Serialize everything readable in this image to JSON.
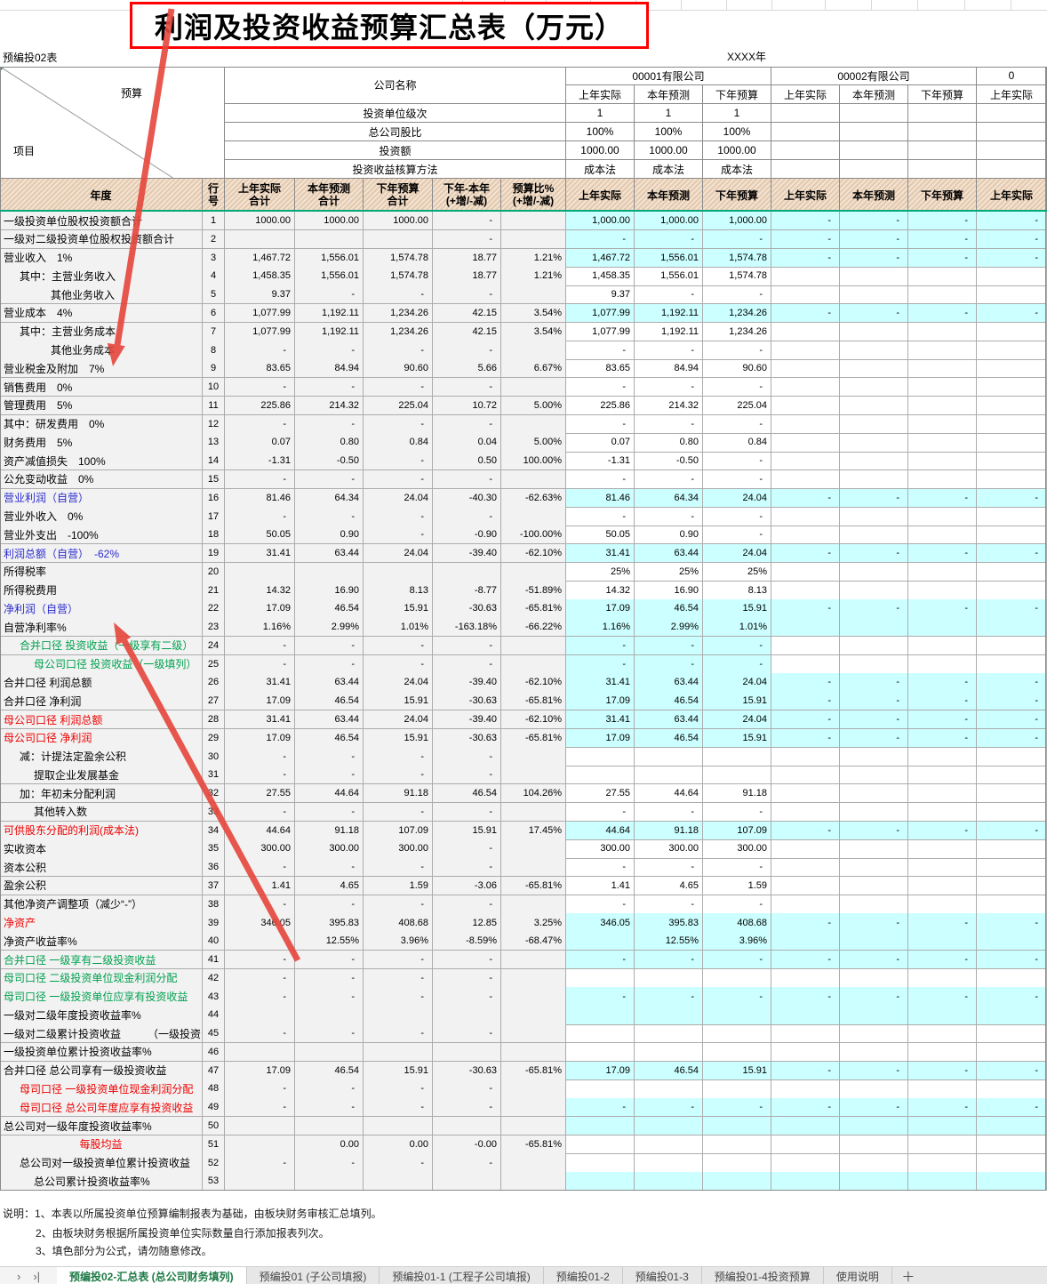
{
  "header": {
    "sheet_code": "预编投02表",
    "year_label": "XXXX年",
    "title": "利润及投资收益预算汇总表（万元）",
    "corner_top": "预算",
    "corner_bottom": "项目",
    "company_name_label": "公司名称",
    "info_labels": [
      "投资单位级次",
      "总公司股比",
      "投资额",
      "投资收益核算方法"
    ],
    "periods": [
      "上年实际",
      "本年预测",
      "下年预算"
    ],
    "company1": {
      "name": "00001有限公司",
      "info": [
        [
          "1",
          "1",
          "1"
        ],
        [
          "100%",
          "100%",
          "100%"
        ],
        [
          "1000.00",
          "1000.00",
          "1000.00"
        ],
        [
          "成本法",
          "成本法",
          "成本法"
        ]
      ]
    },
    "company2": {
      "name": "00002有限公司",
      "info": [
        [
          "",
          "",
          ""
        ],
        [
          "",
          "",
          ""
        ],
        [
          "",
          "",
          ""
        ],
        [
          "",
          "",
          ""
        ]
      ]
    },
    "company3": {
      "name": "0",
      "info": [
        [
          ""
        ],
        [
          ""
        ],
        [
          ""
        ],
        [
          ""
        ]
      ]
    },
    "col_year": "年度",
    "col_rowno": [
      "行",
      "号"
    ],
    "sum_cols": [
      [
        "上年实际",
        "合计"
      ],
      [
        "本年预测",
        "合计"
      ],
      [
        "下年预算",
        "合计"
      ],
      [
        "下年-本年",
        "(+增/-减)"
      ],
      [
        "预算比%",
        "(+增/-减)"
      ]
    ]
  },
  "rows": [
    {
      "n": "1",
      "l": "一级投资单位股权投资额合计",
      "s": [
        "1000.00",
        "1000.00",
        "1000.00",
        "-",
        ""
      ],
      "o1": [
        "1,000.00",
        "1,000.00",
        "1,000.00"
      ],
      "y1": 1,
      "o2": [
        "-",
        "-",
        "-"
      ],
      "y2": 1,
      "o3": "-"
    },
    {
      "n": "2",
      "l": "一级对二级投资单位股权投资额合计",
      "s": [
        "",
        "",
        "",
        "-",
        ""
      ],
      "o1": [
        "-",
        "-",
        "-"
      ],
      "y1": 1,
      "o2": [
        "-",
        "-",
        "-"
      ],
      "y2": 1,
      "o3": "-"
    },
    {
      "n": "3",
      "l": "营业收入　1%",
      "s": [
        "1,467.72",
        "1,556.01",
        "1,574.78",
        "18.77",
        "1.21%"
      ],
      "o1": [
        "1,467.72",
        "1,556.01",
        "1,574.78"
      ],
      "y1": 1,
      "o2": [
        "-",
        "-",
        "-"
      ],
      "y2": 1,
      "o3": "-"
    },
    {
      "n": "4",
      "l": "其中：主营业务收入",
      "i": 1,
      "s": [
        "1,458.35",
        "1,556.01",
        "1,574.78",
        "18.77",
        "1.21%"
      ],
      "o1": [
        "1,458.35",
        "1,556.01",
        "1,574.78"
      ]
    },
    {
      "n": "5",
      "l": "其他业务收入",
      "i": 3,
      "s": [
        "9.37",
        "-",
        "-",
        "-",
        ""
      ],
      "o1": [
        "9.37",
        "-",
        "-"
      ]
    },
    {
      "n": "6",
      "l": "营业成本　4%",
      "s": [
        "1,077.99",
        "1,192.11",
        "1,234.26",
        "42.15",
        "3.54%"
      ],
      "t": [
        0,
        1
      ],
      "o1": [
        "1,077.99",
        "1,192.11",
        "1,234.26"
      ],
      "y1": 1,
      "o2": [
        "-",
        "-",
        "-"
      ],
      "y2": 1,
      "o3": "-"
    },
    {
      "n": "7",
      "l": "其中：主营业务成本",
      "i": 1,
      "s": [
        "1,077.99",
        "1,192.11",
        "1,234.26",
        "42.15",
        "3.54%"
      ],
      "o1": [
        "1,077.99",
        "1,192.11",
        "1,234.26"
      ]
    },
    {
      "n": "8",
      "l": "其他业务成本",
      "i": 3,
      "s": [
        "-",
        "-",
        "-",
        "-",
        ""
      ],
      "o1": [
        "-",
        "-",
        "-"
      ]
    },
    {
      "n": "9",
      "l": "营业税金及附加　7%",
      "s": [
        "83.65",
        "84.94",
        "90.60",
        "5.66",
        "6.67%"
      ],
      "o1": [
        "83.65",
        "84.94",
        "90.60"
      ]
    },
    {
      "n": "10",
      "l": "销售费用　0%",
      "s": [
        "-",
        "-",
        "-",
        "-",
        ""
      ],
      "o1": [
        "-",
        "-",
        "-"
      ]
    },
    {
      "n": "11",
      "l": "管理费用　5%",
      "s": [
        "225.86",
        "214.32",
        "225.04",
        "10.72",
        "5.00%"
      ],
      "o1": [
        "225.86",
        "214.32",
        "225.04"
      ]
    },
    {
      "n": "12",
      "l": "其中：研发费用　0%",
      "s": [
        "-",
        "-",
        "-",
        "-",
        ""
      ],
      "o1": [
        "-",
        "-",
        "-"
      ]
    },
    {
      "n": "13",
      "l": "财务费用　5%",
      "s": [
        "0.07",
        "0.80",
        "0.84",
        "0.04",
        "5.00%"
      ],
      "o1": [
        "0.07",
        "0.80",
        "0.84"
      ]
    },
    {
      "n": "14",
      "l": "资产减值损失　100%",
      "s": [
        "-1.31",
        "-0.50",
        "-",
        "0.50",
        "100.00%"
      ],
      "o1": [
        "-1.31",
        "-0.50",
        "-"
      ]
    },
    {
      "n": "15",
      "l": "公允变动收益　0%",
      "rt": 1,
      "s": [
        "-",
        "-",
        "-",
        "-",
        ""
      ],
      "o1": [
        "-",
        "-",
        "-"
      ]
    },
    {
      "n": "16",
      "l": "营业利润（自营）",
      "c": "b",
      "s": [
        "81.46",
        "64.34",
        "24.04",
        "-40.30",
        "-62.63%"
      ],
      "t": [
        0,
        1,
        2,
        3,
        4
      ],
      "o1": [
        "81.46",
        "64.34",
        "24.04"
      ],
      "y1": 1,
      "t1": [
        0,
        1,
        2
      ],
      "o2": [
        "-",
        "-",
        "-"
      ],
      "y2": 1,
      "o3": "-"
    },
    {
      "n": "17",
      "l": "营业外收入　0%",
      "s": [
        "-",
        "-",
        "-",
        "-",
        ""
      ],
      "o1": [
        "-",
        "-",
        "-"
      ]
    },
    {
      "n": "18",
      "l": "营业外支出　-100%",
      "s": [
        "50.05",
        "0.90",
        "-",
        "-0.90",
        "-100.00%"
      ],
      "o1": [
        "50.05",
        "0.90",
        "-"
      ]
    },
    {
      "n": "19",
      "l": "利润总额（自营）　-62%",
      "c": "b",
      "s": [
        "31.41",
        "63.44",
        "24.04",
        "-39.40",
        "-62.10%"
      ],
      "o1": [
        "31.41",
        "63.44",
        "24.04"
      ],
      "y1": 1,
      "o2": [
        "-",
        "-",
        "-"
      ],
      "y2": 1,
      "o3": "-"
    },
    {
      "n": "20",
      "l": "所得税率",
      "s": [
        "",
        "",
        "",
        "",
        ""
      ],
      "o1": [
        "25%",
        "25%",
        "25%"
      ]
    },
    {
      "n": "21",
      "l": "所得税费用",
      "s": [
        "14.32",
        "16.90",
        "8.13",
        "-8.77",
        "-51.89%"
      ],
      "o1": [
        "14.32",
        "16.90",
        "8.13"
      ]
    },
    {
      "n": "22",
      "l": "净利润（自营）",
      "c": "b",
      "s": [
        "17.09",
        "46.54",
        "15.91",
        "-30.63",
        "-65.81%"
      ],
      "o1": [
        "17.09",
        "46.54",
        "15.91"
      ],
      "y1": 1,
      "o2": [
        "-",
        "-",
        "-"
      ],
      "y2": 1,
      "o3": "-"
    },
    {
      "n": "23",
      "l": "自营净利率%",
      "s": [
        "1.16%",
        "2.99%",
        "1.01%",
        "-163.18%",
        "-66.22%"
      ],
      "t": [
        3,
        4
      ],
      "o1": [
        "1.16%",
        "2.99%",
        "1.01%"
      ],
      "y1": 1,
      "o2": [
        "",
        "",
        ""
      ],
      "y2": 1,
      "o3": ""
    },
    {
      "n": "24",
      "l": "合并口径 投资收益（一级享有二级）",
      "i": 1,
      "c": "g",
      "s": [
        "-",
        "-",
        "-",
        "-",
        ""
      ],
      "o1": [
        "-",
        "-",
        "-"
      ],
      "y1": 1
    },
    {
      "n": "25",
      "l": "母公司口径 投资收益（一级填列）",
      "i": 2,
      "c": "g",
      "s": [
        "-",
        "-",
        "-",
        "-",
        ""
      ],
      "o1": [
        "-",
        "-",
        "-"
      ],
      "y1": 1
    },
    {
      "n": "26",
      "l": "合并口径 利润总额",
      "s": [
        "31.41",
        "63.44",
        "24.04",
        "-39.40",
        "-62.10%"
      ],
      "t": [
        4
      ],
      "o1": [
        "31.41",
        "63.44",
        "24.04"
      ],
      "y1": 1,
      "o2": [
        "-",
        "-",
        "-"
      ],
      "y2": 1,
      "o3": "-"
    },
    {
      "n": "27",
      "l": "合并口径 净利润",
      "s": [
        "17.09",
        "46.54",
        "15.91",
        "-30.63",
        "-65.81%"
      ],
      "t": [
        4
      ],
      "o1": [
        "17.09",
        "46.54",
        "15.91"
      ],
      "y1": 1,
      "o2": [
        "-",
        "-",
        "-"
      ],
      "y2": 1,
      "o3": "-"
    },
    {
      "n": "28",
      "l": "母公司口径 利润总额",
      "c": "r",
      "s": [
        "31.41",
        "63.44",
        "24.04",
        "-39.40",
        "-62.10%"
      ],
      "t": [
        4
      ],
      "o1": [
        "31.41",
        "63.44",
        "24.04"
      ],
      "y1": 1,
      "o2": [
        "-",
        "-",
        "-"
      ],
      "y2": 1,
      "o3": "-"
    },
    {
      "n": "29",
      "l": "母公司口径 净利润",
      "c": "r",
      "s": [
        "17.09",
        "46.54",
        "15.91",
        "-30.63",
        "-65.81%"
      ],
      "t": [
        4
      ],
      "o1": [
        "17.09",
        "46.54",
        "15.91"
      ],
      "y1": 1,
      "o2": [
        "-",
        "-",
        "-"
      ],
      "y2": 1,
      "o3": "-"
    },
    {
      "n": "30",
      "l": "减：计提法定盈余公积",
      "i": 1,
      "s": [
        "-",
        "-",
        "-",
        "-",
        ""
      ]
    },
    {
      "n": "31",
      "l": "提取企业发展基金",
      "i": 2,
      "s": [
        "-",
        "-",
        "-",
        "-",
        ""
      ]
    },
    {
      "n": "32",
      "l": "加：年初未分配利润",
      "i": 1,
      "s": [
        "27.55",
        "44.64",
        "91.18",
        "46.54",
        "104.26%"
      ],
      "o1": [
        "27.55",
        "44.64",
        "91.18"
      ]
    },
    {
      "n": "33",
      "l": "其他转入数",
      "i": 2,
      "s": [
        "-",
        "-",
        "-",
        "-",
        ""
      ],
      "o1": [
        "-",
        "-",
        "-"
      ]
    },
    {
      "n": "34",
      "l": "可供股东分配的利润(成本法)",
      "c": "r",
      "s": [
        "44.64",
        "91.18",
        "107.09",
        "15.91",
        "17.45%"
      ],
      "t": [
        0,
        1
      ],
      "o1": [
        "44.64",
        "91.18",
        "107.09"
      ],
      "y1": 1,
      "t1": [
        0,
        1
      ],
      "o2": [
        "-",
        "-",
        "-"
      ],
      "y2": 1,
      "o3": "-"
    },
    {
      "n": "35",
      "l": "实收资本",
      "s": [
        "300.00",
        "300.00",
        "300.00",
        "-",
        ""
      ],
      "o1": [
        "300.00",
        "300.00",
        "300.00"
      ]
    },
    {
      "n": "36",
      "l": "资本公积",
      "s": [
        "-",
        "-",
        "-",
        "-",
        ""
      ],
      "o1": [
        "-",
        "-",
        "-"
      ]
    },
    {
      "n": "37",
      "l": "盈余公积",
      "s": [
        "1.41",
        "4.65",
        "1.59",
        "-3.06",
        "-65.81%"
      ],
      "o1": [
        "1.41",
        "4.65",
        "1.59"
      ]
    },
    {
      "n": "38",
      "l": "其他净资产调整项（减少“-”）",
      "s": [
        "-",
        "-",
        "-",
        "-",
        ""
      ],
      "o1": [
        "-",
        "-",
        "-"
      ]
    },
    {
      "n": "39",
      "l": "净资产",
      "c": "r",
      "s": [
        "346.05",
        "395.83",
        "408.68",
        "12.85",
        "3.25%"
      ],
      "o1": [
        "346.05",
        "395.83",
        "408.68"
      ],
      "y1": 1,
      "o2": [
        "-",
        "-",
        "-"
      ],
      "y2": 1,
      "o3": "-"
    },
    {
      "n": "40",
      "l": "净资产收益率%",
      "s": [
        "",
        "12.55%",
        "3.96%",
        "-8.59%",
        "-68.47%"
      ],
      "o1": [
        "",
        "12.55%",
        "3.96%"
      ],
      "y1": 1,
      "o2": [
        "",
        "",
        ""
      ],
      "y2": 1,
      "o3": ""
    },
    {
      "n": "41",
      "l": "合并口径 一级享有二级投资收益",
      "c": "g",
      "s": [
        "-",
        "-",
        "-",
        "-",
        ""
      ],
      "o1": [
        "-",
        "-",
        "-"
      ],
      "y1": 1,
      "o2": [
        "-",
        "-",
        "-"
      ],
      "y2": 1,
      "o3": "-"
    },
    {
      "n": "42",
      "l": "母司口径 二级投资单位现金利润分配",
      "c": "g",
      "rt": 1,
      "s": [
        "-",
        "-",
        "-",
        "-",
        ""
      ]
    },
    {
      "n": "43",
      "l": "母司口径 一级投资单位应享有投资收益",
      "c": "g",
      "rt": 1,
      "s": [
        "-",
        "-",
        "-",
        "-",
        ""
      ],
      "o1": [
        "-",
        "-",
        "-"
      ],
      "y1": 1,
      "o2": [
        "-",
        "-",
        "-"
      ],
      "y2": 1,
      "o3": "-"
    },
    {
      "n": "44",
      "l": "一级对二级年度投资收益率%",
      "s": [
        "",
        "",
        "",
        "",
        ""
      ],
      "t": [
        0,
        1,
        2
      ],
      "o1": [
        "",
        "",
        ""
      ],
      "y1": 1,
      "t1": [
        0,
        1,
        2
      ],
      "o2": [
        "",
        "",
        ""
      ],
      "y2": 1,
      "o3": ""
    },
    {
      "n": "45",
      "l": "一级对二级累计投资收益　　　（一级投资",
      "s": [
        "-",
        "-",
        "-",
        "-",
        ""
      ]
    },
    {
      "n": "46",
      "l": "一级投资单位累计投资收益率%",
      "s": [
        "",
        "",
        "",
        "",
        ""
      ],
      "t": [
        0,
        1,
        2
      ],
      "o1": [
        "",
        "",
        ""
      ],
      "t1": [
        0,
        1,
        2
      ]
    },
    {
      "n": "47",
      "l": "合并口径 总公司享有一级投资收益",
      "s": [
        "17.09",
        "46.54",
        "15.91",
        "-30.63",
        "-65.81%"
      ],
      "o1": [
        "17.09",
        "46.54",
        "15.91"
      ],
      "y1": 1,
      "o2": [
        "-",
        "-",
        "-"
      ],
      "y2": 1,
      "o3": "-"
    },
    {
      "n": "48",
      "l": "母司口径 一级投资单位现金利润分配",
      "i": 1,
      "c": "r",
      "rt": 1,
      "s": [
        "-",
        "-",
        "-",
        "-",
        ""
      ]
    },
    {
      "n": "49",
      "l": "母司口径 总公司年度应享有投资收益",
      "i": 1,
      "c": "r",
      "rt": 1,
      "s": [
        "-",
        "-",
        "-",
        "-",
        ""
      ],
      "o1": [
        "-",
        "-",
        "-"
      ],
      "y1": 1,
      "o2": [
        "-",
        "-",
        "-"
      ],
      "y2": 1,
      "o3": "-"
    },
    {
      "n": "50",
      "l": "总公司对一级年度投资收益率%",
      "s": [
        "",
        "",
        "",
        "",
        ""
      ],
      "o1": [
        "",
        "",
        ""
      ],
      "y1": 1,
      "o2": [
        "",
        "",
        ""
      ],
      "y2": 1,
      "o3": ""
    },
    {
      "n": "51",
      "l": "每股均益",
      "c": "r",
      "a": 1,
      "s": [
        "",
        "0.00",
        "0.00",
        "-0.00",
        "-65.81%"
      ]
    },
    {
      "n": "52",
      "l": "总公司对一级投资单位累计投资收益",
      "i": 1,
      "rt": 1,
      "s": [
        "-",
        "-",
        "-",
        "-",
        ""
      ]
    },
    {
      "n": "53",
      "l": "总公司累计投资收益率%",
      "i": 2,
      "s": [
        "",
        "",
        "",
        "",
        ""
      ],
      "o1": [
        "",
        "",
        ""
      ],
      "y1": 1,
      "o2": [
        "",
        "",
        ""
      ],
      "y2": 1,
      "o3": ""
    }
  ],
  "notes": [
    "说明：1、本表以所属投资单位预算编制报表为基础，由板块财务审核汇总填列。",
    "2、由板块财务根据所属投资单位实际数量自行添加报表列次。",
    "3、填色部分为公式，请勿随意修改。"
  ],
  "tabs": {
    "nav": [
      "›",
      "›|"
    ],
    "items": [
      "预编投02-汇总表 (总公司财务填列)",
      "预编投01 (子公司填报)",
      "预编投01-1 (工程子公司填报)",
      "预编投01-2",
      "预编投01-3",
      "预编投01-4投资预算",
      "使用说明"
    ],
    "active_index": 0,
    "add": "＋"
  },
  "colors": {
    "cyan": "#CCFFFF",
    "left_block": "#F2F2F2",
    "freeze_line": "#00A878",
    "arrow": "#E6463C",
    "label_blue": "#2A2ACC",
    "label_green": "#00A14F",
    "label_red": "#EE0000",
    "tab_active_green": "#1E7A46",
    "title_border_red": "#FF0000"
  }
}
